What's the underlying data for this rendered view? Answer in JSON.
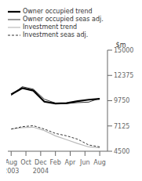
{
  "chart_data": {
    "type": "line",
    "x": [
      0,
      1,
      2,
      3,
      4,
      5,
      6,
      7,
      8
    ],
    "xlim": [
      -0.3,
      8.7
    ],
    "xticks": [
      {
        "value": 0,
        "label": "Aug"
      },
      {
        "value": 1.3333333333333333,
        "label": "Oct"
      },
      {
        "value": 2.6666666666666665,
        "label": "Dec"
      },
      {
        "value": 4,
        "label": "Feb"
      },
      {
        "value": 5.333333333333333,
        "label": "Apr"
      },
      {
        "value": 6.666666666666666,
        "label": "Jun"
      },
      {
        "value": 8,
        "label": "Aug"
      }
    ],
    "ylim": [
      4500,
      15000
    ],
    "yticks": [
      4500,
      7125,
      9750,
      12375,
      15000
    ],
    "ylabel": "$m",
    "grid": false,
    "legend": "upper left",
    "series": [
      {
        "name": "Owner occupied trend",
        "color": "#000000",
        "line_style": "solid",
        "values": [
          10400,
          11050,
          10800,
          9650,
          9450,
          9500,
          9700,
          9850,
          9950
        ]
      },
      {
        "name": "Owner occupied seas adj.",
        "color": "#000000",
        "line_style": "solid",
        "values": [
          10300,
          11200,
          10950,
          9900,
          9500,
          9450,
          9550,
          9600,
          10000
        ]
      },
      {
        "name": "Investment trend",
        "color": "#bbbbbb",
        "line_style": "solid",
        "values": [
          6800,
          6950,
          7000,
          6650,
          6100,
          5700,
          5300,
          4950,
          4850
        ]
      },
      {
        "name": "Investment seas adj.",
        "color": "#000000",
        "line_style": "dashed",
        "values": [
          6800,
          7050,
          7150,
          6800,
          6350,
          6100,
          5750,
          5150,
          4950
        ]
      }
    ],
    "annotations": [
      {
        "text": "2003",
        "x": 0
      },
      {
        "text": "2004",
        "x": 2.6666666666666665
      }
    ]
  }
}
